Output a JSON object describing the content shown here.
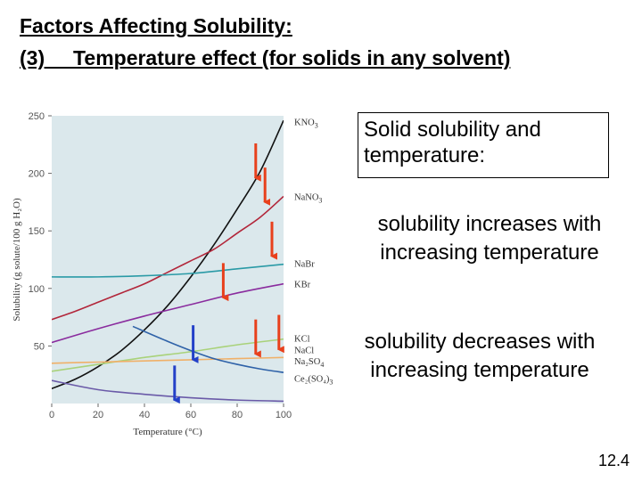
{
  "title_line1": "Factors Affecting Solubility:",
  "title_line2": "(3)     Temperature effect (for solids in any solvent)",
  "box_text_line1": "Solid solubility and",
  "box_text_line2": "temperature:",
  "note1_line1": "solubility increases with",
  "note1_line2": "increasing temperature",
  "note2_line1": "solubility decreases with",
  "note2_line2": "increasing temperature",
  "slide_number": "12.4",
  "colors": {
    "increase_arrow": "#e8401c",
    "decrease_arrow": "#2340c8",
    "plot_bg": "#dbe8ec"
  },
  "chart_data": {
    "type": "line",
    "title": "",
    "xlabel": "Temperature (°C)",
    "ylabel": "Solubility (g solute/100 g H₂O)",
    "xlim": [
      0,
      100
    ],
    "ylim": [
      0,
      250
    ],
    "xticks": [
      0,
      20,
      40,
      60,
      80,
      100
    ],
    "yticks": [
      50,
      100,
      150,
      200,
      250
    ],
    "series": [
      {
        "name": "KNO3",
        "label_main": "KNO",
        "label_sub": "3",
        "color": "#111111",
        "x": [
          0,
          10,
          20,
          30,
          40,
          50,
          60,
          70,
          80,
          90,
          100
        ],
        "y": [
          13,
          21,
          32,
          46,
          64,
          85,
          110,
          138,
          169,
          202,
          246
        ]
      },
      {
        "name": "NaNO3",
        "label_main": "NaNO",
        "label_sub": "3",
        "color": "#b2263a",
        "x": [
          0,
          10,
          20,
          30,
          40,
          50,
          60,
          70,
          80,
          90,
          100
        ],
        "y": [
          73,
          80,
          88,
          96,
          104,
          114,
          124,
          134,
          148,
          162,
          180
        ]
      },
      {
        "name": "NaBr",
        "label_main": "NaBr",
        "label_sub": "",
        "color": "#2a9aa6",
        "x": [
          0,
          20,
          40,
          60,
          80,
          100
        ],
        "y": [
          110,
          110,
          111,
          113,
          117,
          121
        ]
      },
      {
        "name": "KBr",
        "label_main": "KBr",
        "label_sub": "",
        "color": "#8a2c9e",
        "x": [
          0,
          20,
          40,
          60,
          80,
          100
        ],
        "y": [
          53,
          65,
          76,
          86,
          96,
          104
        ]
      },
      {
        "name": "KCl",
        "label_main": "KCl",
        "label_sub": "",
        "color": "#a9d27a",
        "x": [
          0,
          20,
          40,
          60,
          80,
          100
        ],
        "y": [
          28,
          34,
          40,
          45,
          51,
          56
        ]
      },
      {
        "name": "NaCl",
        "label_main": "NaCl",
        "label_sub": "",
        "color": "#f0b068",
        "x": [
          0,
          20,
          40,
          60,
          80,
          100
        ],
        "y": [
          35,
          36,
          37,
          38,
          39,
          40
        ]
      },
      {
        "name": "Na2SO4",
        "label_main": "Na₂SO",
        "label_sub": "4",
        "color": "#2f62a8",
        "x": [
          35,
          50,
          60,
          70,
          80,
          90,
          100
        ],
        "y": [
          67,
          54,
          46,
          39,
          34,
          30,
          27
        ]
      },
      {
        "name": "Ce2(SO4)3",
        "label_main": "Ce₂(SO₄)",
        "label_sub": "3",
        "color": "#6a5aa8",
        "x": [
          0,
          20,
          40,
          60,
          80,
          100
        ],
        "y": [
          20,
          12,
          8,
          5,
          3,
          2
        ]
      }
    ],
    "arrows_increase": [
      {
        "x": 88,
        "y1": 226,
        "y2": 196
      },
      {
        "x": 92,
        "y1": 205,
        "y2": 175
      },
      {
        "x": 95,
        "y1": 158,
        "y2": 128
      },
      {
        "x": 74,
        "y1": 122,
        "y2": 92
      },
      {
        "x": 88,
        "y1": 73,
        "y2": 43
      },
      {
        "x": 98,
        "y1": 77,
        "y2": 47
      }
    ],
    "arrows_decrease": [
      {
        "x": 61,
        "y1": 68,
        "y2": 38
      },
      {
        "x": 53,
        "y1": 33,
        "y2": 3
      }
    ]
  }
}
